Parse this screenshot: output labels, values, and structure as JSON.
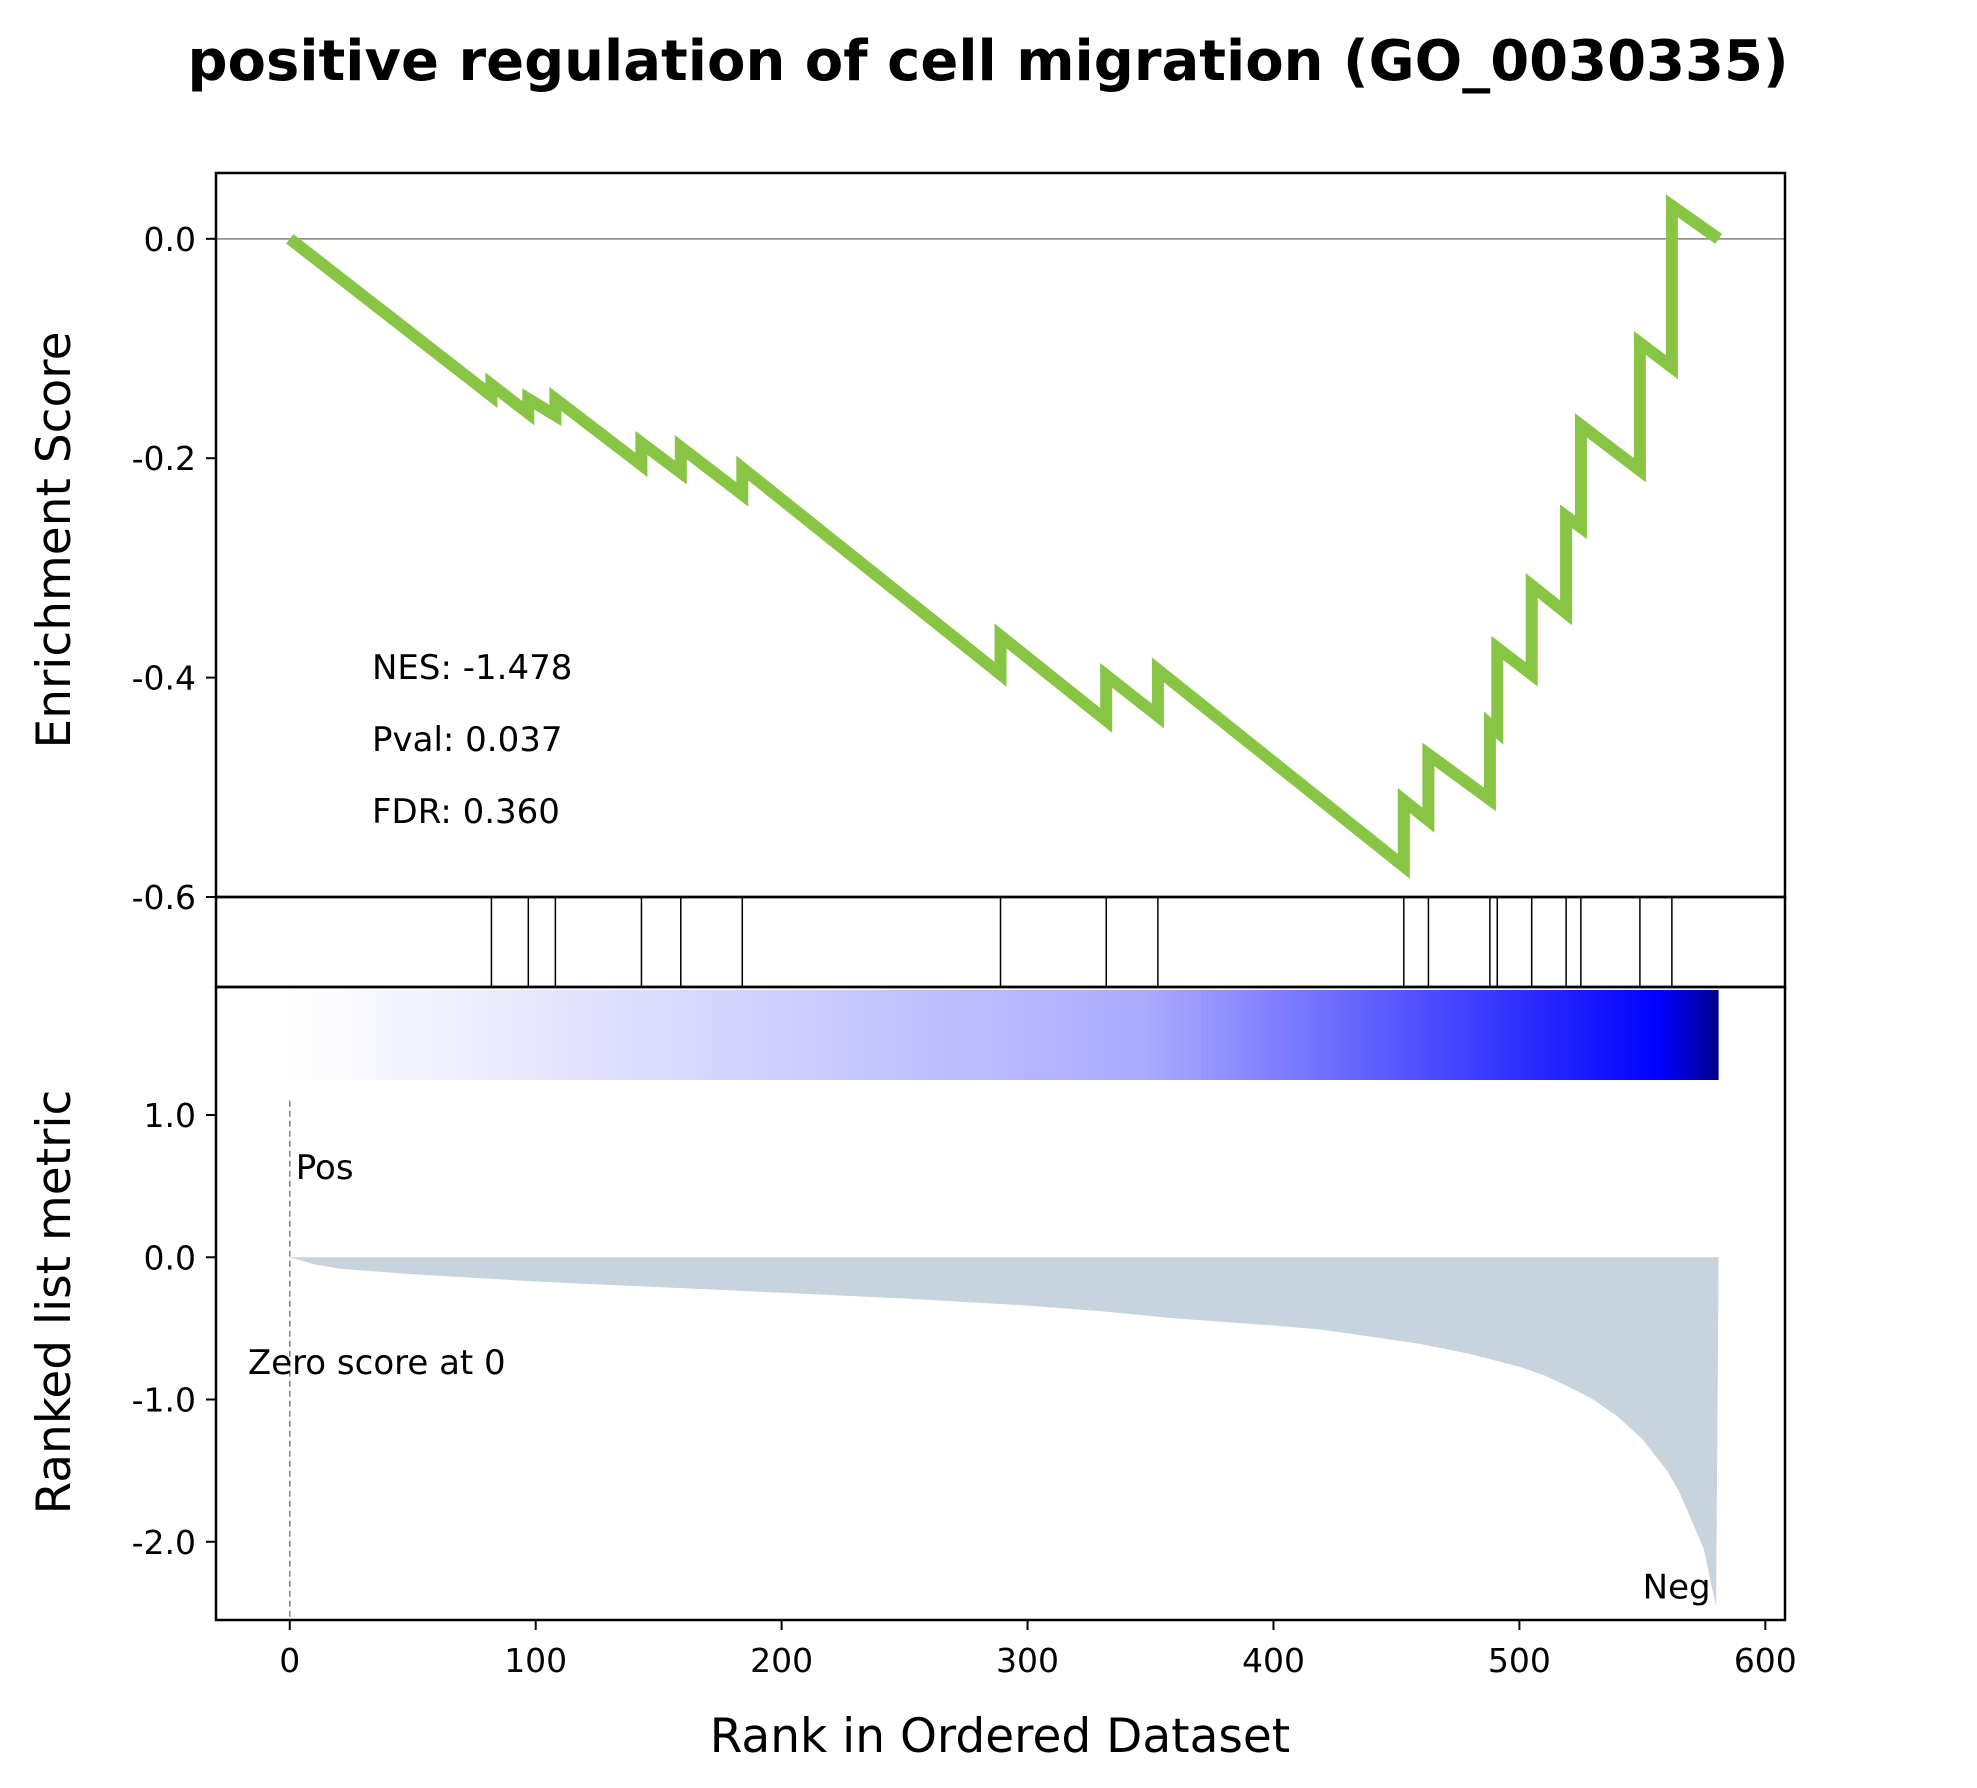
{
  "chart_data": {
    "type": "line",
    "title": "positive regulation of cell migration (GO_0030335)",
    "xlabel": "Rank in Ordered Dataset",
    "xlim": [
      -30,
      608
    ],
    "xticks": [
      0,
      100,
      200,
      300,
      400,
      500,
      600
    ],
    "enrichment_panel": {
      "ylabel": "Enrichment Score",
      "ylim": [
        -0.6,
        0.06
      ],
      "yticks": [
        0.0,
        -0.2,
        -0.4,
        -0.6
      ],
      "ytick_labels": [
        "0.0",
        "-0.2",
        "-0.4",
        "-0.6"
      ],
      "line_color": "#88c544",
      "zero_line_color": "#808080",
      "running_es": [
        [
          0,
          0.0
        ],
        [
          82,
          -0.143
        ],
        [
          82,
          -0.133
        ],
        [
          97,
          -0.159
        ],
        [
          97,
          -0.146
        ],
        [
          108,
          -0.161
        ],
        [
          108,
          -0.146
        ],
        [
          143,
          -0.206
        ],
        [
          143,
          -0.186
        ],
        [
          159,
          -0.213
        ],
        [
          159,
          -0.19
        ],
        [
          184,
          -0.233
        ],
        [
          184,
          -0.209
        ],
        [
          289,
          -0.397
        ],
        [
          289,
          -0.362
        ],
        [
          332,
          -0.439
        ],
        [
          332,
          -0.398
        ],
        [
          353,
          -0.435
        ],
        [
          353,
          -0.393
        ],
        [
          453,
          -0.572
        ],
        [
          453,
          -0.512
        ],
        [
          463,
          -0.53
        ],
        [
          463,
          -0.47
        ],
        [
          488,
          -0.511
        ],
        [
          488,
          -0.443
        ],
        [
          491,
          -0.449
        ],
        [
          491,
          -0.373
        ],
        [
          505,
          -0.397
        ],
        [
          505,
          -0.316
        ],
        [
          519,
          -0.341
        ],
        [
          519,
          -0.253
        ],
        [
          525,
          -0.263
        ],
        [
          525,
          -0.17
        ],
        [
          549,
          -0.211
        ],
        [
          549,
          -0.095
        ],
        [
          562,
          -0.117
        ],
        [
          562,
          0.03
        ],
        [
          581,
          0.0
        ]
      ],
      "annotations": [
        "NES: -1.478",
        "Pval: 0.037",
        "FDR: 0.360"
      ]
    },
    "hits_panel": {
      "hit_ranks": [
        82,
        97,
        108,
        143,
        159,
        184,
        289,
        332,
        353,
        453,
        463,
        488,
        491,
        505,
        519,
        525,
        549,
        562
      ]
    },
    "ranked_metric_panel": {
      "ylabel": "Ranked list metric",
      "ylim": [
        -2.55,
        1.9
      ],
      "yticks": [
        1.0,
        0.0,
        -1.0,
        -2.0
      ],
      "ytick_labels": [
        "1.0",
        "0.0",
        "-1.0",
        "-2.0"
      ],
      "fill_color": "#c7d3dd",
      "metric_curve": [
        [
          0,
          0.0
        ],
        [
          10,
          -0.05
        ],
        [
          20,
          -0.08
        ],
        [
          50,
          -0.12
        ],
        [
          100,
          -0.17
        ],
        [
          150,
          -0.21
        ],
        [
          200,
          -0.25
        ],
        [
          250,
          -0.29
        ],
        [
          300,
          -0.34
        ],
        [
          330,
          -0.38
        ],
        [
          360,
          -0.43
        ],
        [
          400,
          -0.48
        ],
        [
          420,
          -0.51
        ],
        [
          440,
          -0.56
        ],
        [
          460,
          -0.61
        ],
        [
          480,
          -0.68
        ],
        [
          500,
          -0.77
        ],
        [
          510,
          -0.83
        ],
        [
          520,
          -0.91
        ],
        [
          530,
          -1.0
        ],
        [
          540,
          -1.12
        ],
        [
          550,
          -1.28
        ],
        [
          560,
          -1.5
        ],
        [
          565,
          -1.65
        ],
        [
          570,
          -1.85
        ],
        [
          575,
          -2.05
        ],
        [
          578,
          -2.3
        ],
        [
          580,
          -2.45
        ],
        [
          581,
          0.0
        ]
      ],
      "n_genes": 581,
      "pos_label": "Pos",
      "neg_label": "Neg",
      "pos_color": "#ff0000",
      "neg_color": "#0000ff",
      "zero_cross_label": "Zero score at 0",
      "gradient_colors": [
        "#ffffff",
        "#aaaaff",
        "#0000ff",
        "#00008b"
      ]
    }
  }
}
